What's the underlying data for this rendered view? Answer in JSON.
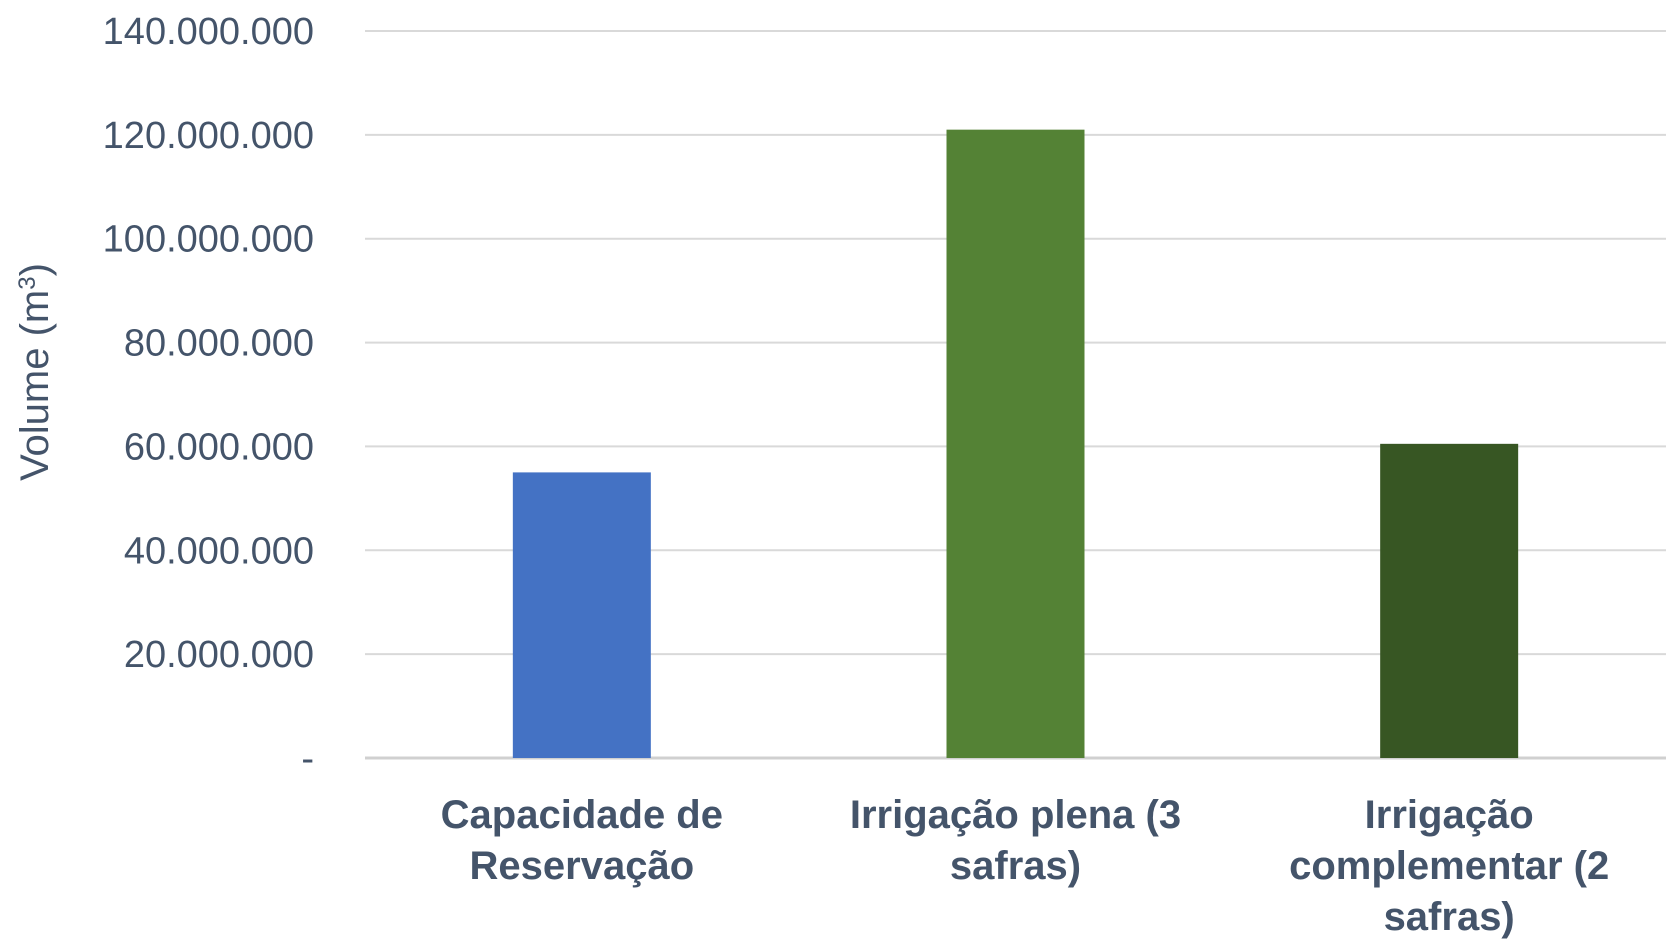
{
  "chart_data": {
    "type": "bar",
    "title": "",
    "xlabel": "",
    "ylabel": "Volume (m",
    "ylabel_superscript": "3",
    "ylabel_close": ")",
    "categories": [
      [
        "Capacidade de",
        "Reservação"
      ],
      [
        "Irrigação plena (3",
        "safras)"
      ],
      [
        "Irrigação",
        "complementar (2",
        "safras)"
      ]
    ],
    "values": [
      55000000,
      121000000,
      60500000
    ],
    "colors": [
      "#4472c4",
      "#548235",
      "#375623"
    ],
    "ylim": [
      0,
      140000000
    ],
    "yticks": [
      0,
      20000000,
      40000000,
      60000000,
      80000000,
      100000000,
      120000000,
      140000000
    ],
    "ytick_labels": [
      "-",
      "20.000.000",
      "40.000.000",
      "60.000.000",
      "80.000.000",
      "100.000.000",
      "120.000.000",
      "140.000.000"
    ],
    "grid": true,
    "legend": "none"
  }
}
